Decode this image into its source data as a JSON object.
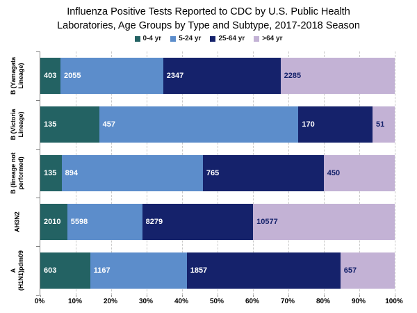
{
  "title": "Influenza Positive Tests Reported to CDC by U.S. Public Health\nLaboratories, Age Groups by Type and Subtype, 2017-2018 Season",
  "chart_data": {
    "type": "bar",
    "stacked": true,
    "percent_stacked": true,
    "orientation": "horizontal",
    "title": "Influenza Positive Tests Reported to CDC by U.S. Public Health Laboratories, Age Groups by Type and Subtype, 2017-2018 Season",
    "categories": [
      "B (Yamagata\nLineage)",
      "B (Victoria\nLineage)",
      "B (lineage not\nperformed)",
      "AH3N2",
      "A\n(H1N1)pdm09"
    ],
    "series": [
      {
        "name": "0-4 yr",
        "color": "#236263",
        "label_color": "#ffffff",
        "values": [
          403,
          135,
          135,
          2010,
          603
        ]
      },
      {
        "name": "5-24 yr",
        "color": "#5C8DCB",
        "label_color": "#ffffff",
        "values": [
          2055,
          457,
          894,
          5598,
          1167
        ]
      },
      {
        "name": "25-64 yr",
        "color": "#15226B",
        "label_color": "#ffffff",
        "values": [
          2347,
          170,
          765,
          8279,
          1857
        ]
      },
      {
        "name": ">64 yr",
        "color": "#C3B2D5",
        "label_color": "#15226B",
        "values": [
          2285,
          51,
          450,
          10577,
          657
        ]
      }
    ],
    "x_ticks": [
      "0%",
      "10%",
      "20%",
      "30%",
      "40%",
      "50%",
      "60%",
      "70%",
      "80%",
      "90%",
      "100%"
    ],
    "xlim": [
      0,
      100
    ],
    "xlabel": "",
    "ylabel": "",
    "legend_position": "top",
    "grid": "vertical-dashed"
  }
}
